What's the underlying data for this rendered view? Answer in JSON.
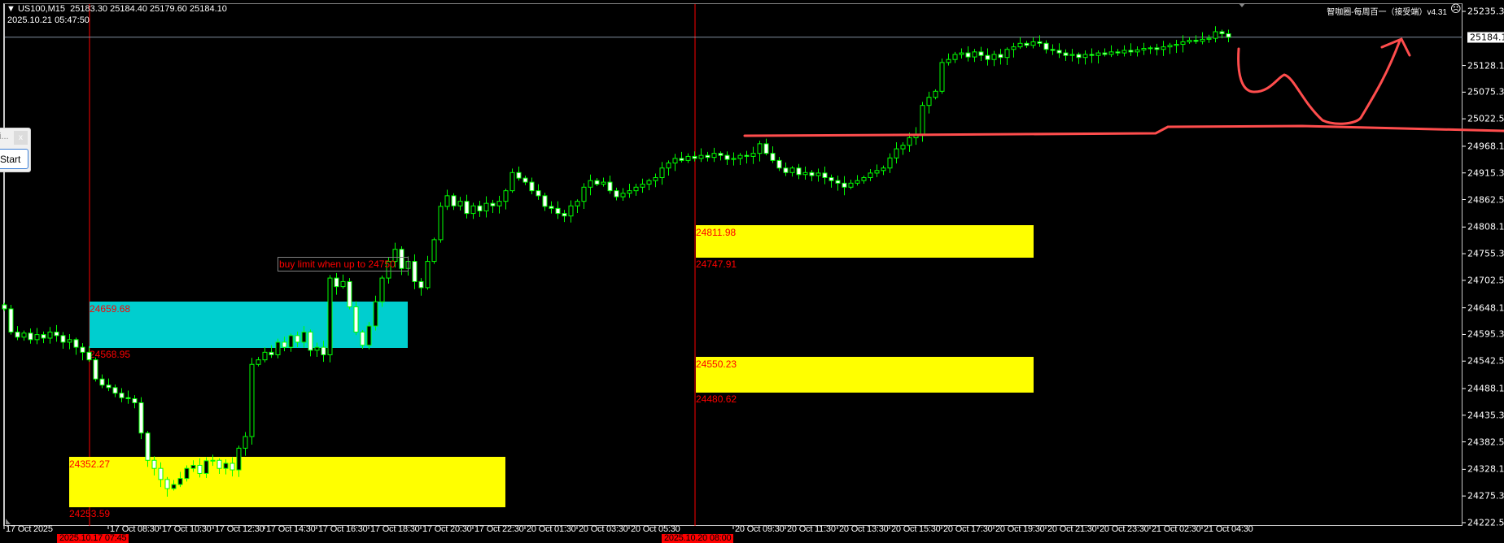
{
  "header": {
    "symbol": "US100,M15",
    "ohlc": "25183.30 25184.40 25179.60 25184.10",
    "server_time": "2025.10.21 05:47:50"
  },
  "indicator": {
    "label": "智咖圈-每周百一（接受端）v4.31",
    "status_icon": "frown-face-icon"
  },
  "dialog": {
    "title": "i...",
    "close_label": "x",
    "start_label": "Start"
  },
  "note": {
    "text": "buy limit when up to 24750"
  },
  "zones": [
    {
      "color": "#ffff00",
      "top_label": "24352.27",
      "bottom_label": "24253.59",
      "top": 24352.27,
      "bottom": 24253.59
    },
    {
      "color": "#00cecf",
      "top_label": "24659.68",
      "bottom_label": "24568.95",
      "top": 24659.68,
      "bottom": 24568.95
    },
    {
      "color": "#ffff00",
      "top_label": "24811.98",
      "bottom_label": "24747.91",
      "top": 24811.98,
      "bottom": 24747.91
    },
    {
      "color": "#ffff00",
      "top_label": "24550.23",
      "bottom_label": "24480.62",
      "top": 24550.23,
      "bottom": 24480.62
    }
  ],
  "colors": {
    "background": "#000000",
    "candle": "#00ff00",
    "bear_body": "#ffffff",
    "bull_body": "#000000",
    "period_separator": "#ff0000",
    "drawing": "#ff4d4d",
    "bid_line": "#8090a0"
  },
  "chart_data": {
    "type": "candlestick",
    "title": "US100,M15",
    "ylim": [
      24222.5,
      25235.3
    ],
    "y_ticks": [
      "25235.30",
      "25128.10",
      "25075.30",
      "25022.50",
      "24968.10",
      "24915.30",
      "24862.50",
      "24808.10",
      "24755.30",
      "24702.50",
      "24648.10",
      "24595.30",
      "24542.50",
      "24488.10",
      "24435.30",
      "24382.50",
      "24328.10",
      "24275.30",
      "24222.50"
    ],
    "current_price": "25184.10",
    "x_ticks": [
      "17 Oct 2025",
      "2025.10.17 07:45",
      "17 Oct 08:30",
      "17 Oct 10:30",
      "17 Oct 12:30",
      "17 Oct 14:30",
      "17 Oct 16:30",
      "17 Oct 18:30",
      "17 Oct 20:30",
      "17 Oct 22:30",
      "20 Oct 01:30",
      "20 Oct 03:30",
      "20 Oct 05:30",
      "2025.10.20 08:00",
      "20 Oct 09:30",
      "20 Oct 11:30",
      "20 Oct 13:30",
      "20 Oct 15:30",
      "20 Oct 17:30",
      "20 Oct 19:30",
      "20 Oct 21:30",
      "20 Oct 23:30",
      "21 Oct 02:30",
      "21 Oct 04:30"
    ],
    "closes": [
      24646,
      24600,
      24590,
      24598,
      24585,
      24595,
      24588,
      24600,
      24593,
      24580,
      24585,
      24570,
      24560,
      24545,
      24507,
      24495,
      24490,
      24479,
      24470,
      24468,
      24460,
      24400,
      24346,
      24330,
      24308,
      24290,
      24298,
      24310,
      24330,
      24336,
      24320,
      24345,
      24346,
      24330,
      24340,
      24327,
      24370,
      24393,
      24536,
      24545,
      24560,
      24555,
      24580,
      24570,
      24593,
      24580,
      24600,
      24564,
      24570,
      24555,
      24707,
      24690,
      24700,
      24650,
      24600,
      24574,
      24612,
      24660,
      24707,
      24740,
      24764,
      24726,
      24740,
      24700,
      24688,
      24740,
      24783,
      24849,
      24870,
      24850,
      24859,
      24835,
      24850,
      24840,
      24855,
      24850,
      24859,
      24880,
      24916,
      24905,
      24897,
      24880,
      24870,
      24849,
      24845,
      24835,
      24830,
      24850,
      24859,
      24887,
      24900,
      24893,
      24897,
      24880,
      24868,
      24875,
      24880,
      24887,
      24893,
      24900,
      24906,
      24925,
      24935,
      24944,
      24940,
      24948,
      24944,
      24950,
      24946,
      24954,
      24950,
      24942,
      24944,
      24950,
      24948,
      24954,
      24973,
      24954,
      24940,
      24925,
      24916,
      24925,
      24912,
      24916,
      24910,
      24915,
      24906,
      24900,
      24895,
      24887,
      24895,
      24900,
      24906,
      24915,
      24920,
      24925,
      24945,
      24963,
      24970,
      24985,
      24992,
      25049,
      25065,
      25077,
      25134,
      25140,
      25150,
      25153,
      25145,
      25155,
      25148,
      25140,
      25150,
      25144,
      25160,
      25165,
      25172,
      25168,
      25175,
      25172,
      25160,
      25158,
      25153,
      25148,
      25150,
      25144,
      25150,
      25148,
      25153,
      25150,
      25155,
      25153,
      25158,
      25155,
      25159,
      25162,
      25163,
      25160,
      25165,
      25168,
      25170,
      25175,
      25178,
      25176,
      25180,
      25182,
      25195,
      25191,
      25184.1
    ]
  }
}
